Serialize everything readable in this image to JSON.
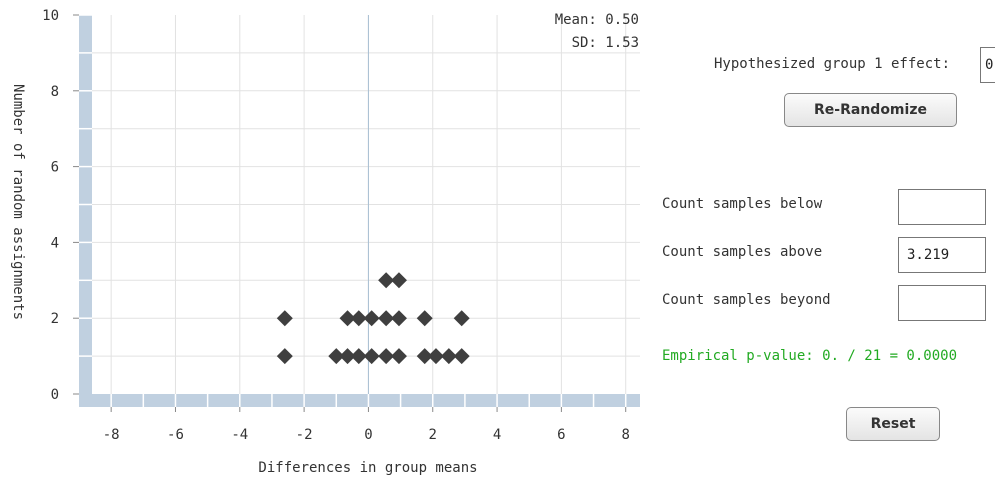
{
  "chart_data": {
    "type": "scatter",
    "title": "",
    "xlabel": "Differences in group means",
    "ylabel": "Number of random assignments",
    "xlim": [
      -9,
      8.6
    ],
    "ylim": [
      0,
      10
    ],
    "x_ticks": [
      -8,
      -6,
      -4,
      -2,
      0,
      2,
      4,
      6,
      8
    ],
    "y_ticks": [
      0,
      2,
      4,
      6,
      8,
      10
    ],
    "grid": true,
    "points": [
      {
        "x": -2.6,
        "y": 1
      },
      {
        "x": -2.6,
        "y": 2
      },
      {
        "x": -1.0,
        "y": 1
      },
      {
        "x": -0.65,
        "y": 1
      },
      {
        "x": -0.65,
        "y": 2
      },
      {
        "x": -0.3,
        "y": 1
      },
      {
        "x": -0.3,
        "y": 2
      },
      {
        "x": 0.1,
        "y": 1
      },
      {
        "x": 0.1,
        "y": 2
      },
      {
        "x": 0.55,
        "y": 1
      },
      {
        "x": 0.55,
        "y": 2
      },
      {
        "x": 0.55,
        "y": 3
      },
      {
        "x": 0.95,
        "y": 1
      },
      {
        "x": 0.95,
        "y": 2
      },
      {
        "x": 0.95,
        "y": 3
      },
      {
        "x": 1.75,
        "y": 1
      },
      {
        "x": 1.75,
        "y": 2
      },
      {
        "x": 2.1,
        "y": 1
      },
      {
        "x": 2.5,
        "y": 1
      },
      {
        "x": 2.9,
        "y": 1
      },
      {
        "x": 2.9,
        "y": 2
      }
    ],
    "stats": {
      "mean_label": "Mean: 0.50",
      "sd_label": "SD: 1.53"
    },
    "colors": {
      "axis_band": "#c0d0e0",
      "grid": "#e2e2e2",
      "zero_line": "#a9bfd3",
      "marker": "#3f3f3f"
    }
  },
  "controls": {
    "hypothesized_label": "Hypothesized group 1 effect:",
    "hypothesized_value": "0",
    "rerandomize_label": "Re-Randomize",
    "count_below_label": "Count samples below",
    "count_below_value": "",
    "count_above_label": "Count samples above",
    "count_above_value": "3.219",
    "count_beyond_label": "Count samples beyond",
    "count_beyond_value": "",
    "pvalue_text": "Empirical p-value: 0. / 21 = 0.0000",
    "reset_label": "Reset",
    "pvalue_color": "#22aa22"
  }
}
